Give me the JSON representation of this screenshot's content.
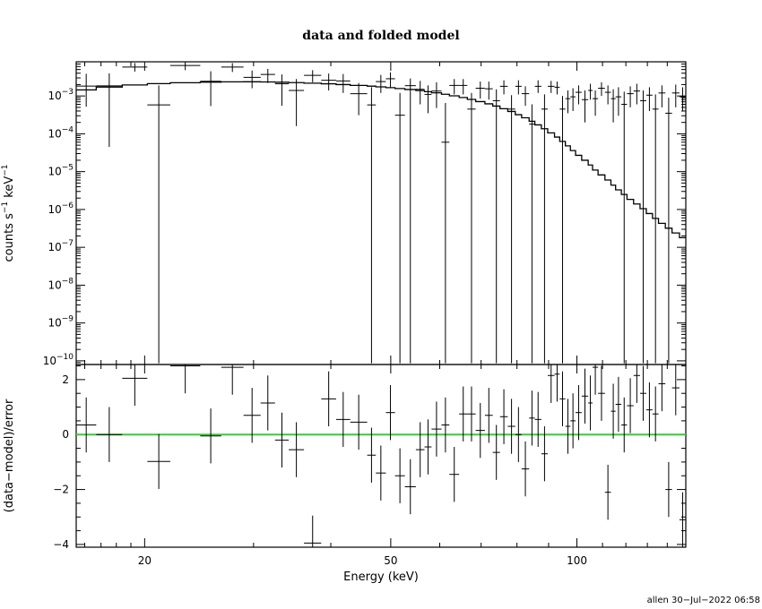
{
  "chart_data": [
    {
      "type": "scatter",
      "title": "data and folded model",
      "xlabel": "",
      "ylabel": "counts s",
      "ylabel_sup1": "−1",
      "ylabel_unit": " keV",
      "ylabel_sup2": "−1",
      "xscale": "log",
      "yscale": "log",
      "xlim": [
        15.5,
        150
      ],
      "ylim": [
        8e-11,
        0.008
      ],
      "y_ticks": [
        {
          "v": 0.001,
          "base": "10",
          "exp": "−3"
        },
        {
          "v": 0.0001,
          "base": "10",
          "exp": "−4"
        },
        {
          "v": 1e-05,
          "base": "10",
          "exp": "−5"
        },
        {
          "v": 1e-06,
          "base": "10",
          "exp": "−6"
        },
        {
          "v": 1e-07,
          "base": "10",
          "exp": "−7"
        },
        {
          "v": 1e-08,
          "base": "10",
          "exp": "−8"
        },
        {
          "v": 1e-09,
          "base": "10",
          "exp": "−9"
        },
        {
          "v": 1e-10,
          "base": "10",
          "exp": "−10"
        }
      ],
      "series": [
        {
          "kind": "data-with-errors",
          "color": "#000000",
          "points": [
            [
              15.5,
              16.7,
              0.00182,
              0.00052,
              0.00385
            ],
            [
              16.7,
              18.4,
              0.00185,
              4.5e-05,
              0.00395
            ],
            [
              18.4,
              20.2,
              0.0058,
              0.0044,
              0.0074
            ],
            [
              20.2,
              22.0,
              0.00058,
              8.6e-11,
              0.0019
            ],
            [
              22.0,
              24.6,
              0.0064,
              0.0048,
              0.0081
            ],
            [
              24.6,
              26.6,
              0.00245,
              0.00054,
              0.0045
            ],
            [
              26.6,
              28.9,
              0.0058,
              0.0043,
              0.0074
            ],
            [
              28.9,
              30.8,
              0.0031,
              0.0016,
              0.0047
            ],
            [
              30.8,
              32.5,
              0.0037,
              0.0022,
              0.0052
            ],
            [
              32.5,
              34.2,
              0.0021,
              0.00055,
              0.0037
            ],
            [
              34.2,
              36.2,
              0.0014,
              0.00016,
              0.0028
            ],
            [
              36.2,
              38.6,
              0.0035,
              0.0023,
              0.0048
            ],
            [
              38.6,
              40.8,
              0.0026,
              0.0014,
              0.0039
            ],
            [
              40.8,
              43.0,
              0.0025,
              0.0012,
              0.0038
            ],
            [
              43.0,
              45.8,
              0.00115,
              0.00031,
              0.0022
            ],
            [
              45.8,
              47.3,
              0.00058,
              8.6e-11,
              0.0017
            ],
            [
              47.3,
              49.1,
              0.0024,
              0.0012,
              0.0036
            ],
            [
              49.1,
              50.8,
              0.00285,
              0.0017,
              0.0042
            ],
            [
              50.8,
              52.7,
              0.00031,
              8.6e-11,
              0.0012
            ],
            [
              52.7,
              54.9,
              0.00187,
              8.6e-11,
              0.0029
            ],
            [
              54.9,
              56.7,
              0.0015,
              0.0006,
              0.0025
            ],
            [
              56.7,
              58.2,
              0.0011,
              0.00035,
              0.0019
            ],
            [
              58.2,
              60.4,
              0.00135,
              0.00048,
              0.0023
            ],
            [
              60.4,
              62.2,
              6e-05,
              8.6e-11,
              0.00065
            ],
            [
              62.2,
              64.5,
              0.0019,
              0.0011,
              0.0028
            ],
            [
              64.5,
              66.5,
              0.0019,
              0.0011,
              0.0028
            ],
            [
              66.5,
              68.6,
              0.00045,
              8.6e-11,
              0.0012
            ],
            [
              68.6,
              71.0,
              0.0016,
              0.00085,
              0.0024
            ],
            [
              71.0,
              73.1,
              0.00155,
              0.0008,
              0.0024
            ],
            [
              73.1,
              75.1,
              0.00075,
              8.6e-11,
              0.0015
            ],
            [
              75.1,
              77.3,
              0.0018,
              0.0011,
              0.0026
            ],
            [
              77.3,
              79.5,
              0.00045,
              8.6e-11,
              0.00105
            ],
            [
              79.5,
              81.4,
              0.0018,
              0.0011,
              0.0026
            ],
            [
              81.4,
              83.7,
              0.00115,
              0.00055,
              0.0018
            ],
            [
              83.7,
              85.5,
              0.00018,
              8.6e-11,
              0.0006
            ],
            [
              85.5,
              87.6,
              0.0018,
              0.0012,
              0.0026
            ],
            [
              87.6,
              89.7,
              0.00045,
              8.6e-11,
              0.0011
            ],
            [
              89.7,
              92.0,
              0.0018,
              0.0012,
              0.0025
            ],
            [
              92.0,
              93.8,
              0.0017,
              0.0011,
              0.0024
            ],
            [
              93.8,
              95.8,
              0.00045,
              8.6e-11,
              0.001
            ],
            [
              95.8,
              97.6,
              0.00085,
              0.00035,
              0.0014
            ],
            [
              97.6,
              99.5,
              0.00095,
              0.0004,
              0.0016
            ],
            [
              99.5,
              101.8,
              0.00125,
              0.0006,
              0.0019
            ],
            [
              101.8,
              104.3,
              0.0008,
              0.0002,
              0.0014
            ],
            [
              104.3,
              106.0,
              0.0014,
              0.0008,
              0.0021
            ],
            [
              106.0,
              108.2,
              0.00085,
              0.0003,
              0.0014
            ],
            [
              108.2,
              111.0,
              0.0016,
              0.001,
              0.0023
            ],
            [
              111.0,
              113.5,
              0.00125,
              0.0006,
              0.0019
            ],
            [
              113.5,
              115.5,
              0.00085,
              0.0002,
              0.0015
            ],
            [
              115.5,
              118.0,
              0.00095,
              0.0003,
              0.0017
            ],
            [
              118.0,
              120.5,
              0.0006,
              8.6e-11,
              0.0013
            ],
            [
              120.5,
              123.5,
              0.00115,
              0.0005,
              0.0018
            ],
            [
              123.5,
              126.5,
              0.00135,
              0.0006,
              0.0021
            ],
            [
              126.5,
              129.5,
              0.00075,
              8.6e-11,
              0.0014
            ],
            [
              129.5,
              132.5,
              0.00105,
              0.0004,
              0.0017
            ],
            [
              132.5,
              135.5,
              0.00045,
              8.6e-11,
              0.0011
            ],
            [
              135.5,
              139.0,
              0.0012,
              0.0005,
              0.0019
            ],
            [
              139.0,
              142.5,
              0.00035,
              8.6e-11,
              0.0009
            ],
            [
              142.5,
              146.5,
              0.0012,
              0.0005,
              0.002
            ],
            [
              146.5,
              150.0,
              0.00095,
              0.0004,
              0.0017
            ]
          ]
        },
        {
          "kind": "model-step",
          "color": "#000000",
          "edges": [
            15.5,
            16.7,
            18.4,
            20.2,
            22.0,
            24.6,
            26.6,
            28.9,
            30.8,
            32.5,
            34.2,
            36.2,
            38.6,
            40.8,
            43.0,
            45.8,
            47.3,
            49.1,
            50.8,
            52.7,
            54.9,
            56.7,
            58.2,
            60.4,
            62.2,
            64.5,
            66.5,
            68.6,
            71.0,
            73.1,
            75.1,
            77.3,
            79.5,
            81.4,
            83.7,
            85.5,
            87.6,
            89.7,
            92.0,
            93.8,
            95.8,
            97.6,
            99.5,
            101.8,
            104.3,
            106.0,
            108.2,
            111.0,
            113.5,
            115.5,
            118.0,
            120.5,
            123.5,
            126.5,
            129.5,
            132.5,
            135.5,
            139.0,
            142.5,
            146.5,
            150.0
          ],
          "values": [
            0.00145,
            0.00172,
            0.00195,
            0.00212,
            0.00224,
            0.00232,
            0.00236,
            0.00237,
            0.00235,
            0.00231,
            0.00225,
            0.00218,
            0.0021,
            0.002,
            0.0019,
            0.00182,
            0.00174,
            0.00166,
            0.00157,
            0.00148,
            0.00139,
            0.0013,
            0.00121,
            0.00111,
            0.00101,
            0.00091,
            0.00081,
            0.00071,
            0.00062,
            0.00054,
            0.00046,
            0.00039,
            0.00032,
            0.000265,
            0.000215,
            0.000172,
            0.000136,
            0.000106,
            8.2e-05,
            6.3e-05,
            4.8e-05,
            3.6e-05,
            2.7e-05,
            2e-05,
            1.5e-05,
            1.1e-05,
            8.2e-06,
            6e-06,
            4.4e-06,
            3.3e-06,
            2.5e-06,
            1.85e-06,
            1.4e-06,
            1.05e-06,
            7.8e-07,
            5.8e-07,
            4.3e-07,
            3.2e-07,
            2.4e-07,
            1.8e-07
          ]
        }
      ]
    },
    {
      "type": "scatter",
      "xlabel": "Energy (keV)",
      "ylabel": "(data−model)/error",
      "xscale": "log",
      "xlim": [
        15.5,
        150
      ],
      "ylim": [
        -4.1,
        2.55
      ],
      "x_ticks": [
        {
          "v": 20,
          "label": "20"
        },
        {
          "v": 50,
          "label": "50"
        },
        {
          "v": 100,
          "label": "100"
        }
      ],
      "y_ticks": [
        {
          "v": 2,
          "label": "2"
        },
        {
          "v": 0,
          "label": "0"
        },
        {
          "v": -2,
          "label": "−2"
        },
        {
          "v": -4,
          "label": "−4"
        }
      ],
      "series": [
        {
          "kind": "zero-line",
          "color": "#33cc33",
          "value": 0
        },
        {
          "kind": "residuals",
          "color": "#000000",
          "points": [
            [
              15.5,
              16.7,
              0.35,
              1.0
            ],
            [
              16.7,
              18.4,
              0.0,
              1.0
            ],
            [
              18.4,
              20.2,
              2.05,
              1.0
            ],
            [
              20.2,
              22.0,
              -0.98,
              1.0
            ],
            [
              22.0,
              24.6,
              2.5,
              1.0
            ],
            [
              24.6,
              26.6,
              -0.05,
              1.0
            ],
            [
              26.6,
              28.9,
              2.45,
              1.0
            ],
            [
              28.9,
              30.8,
              0.7,
              1.0
            ],
            [
              30.8,
              32.5,
              1.15,
              1.0
            ],
            [
              32.5,
              34.2,
              -0.2,
              1.0
            ],
            [
              34.2,
              36.2,
              -0.55,
              1.0
            ],
            [
              36.2,
              38.6,
              -3.95,
              1.0
            ],
            [
              38.6,
              40.8,
              1.3,
              1.0
            ],
            [
              40.8,
              43.0,
              0.55,
              1.0
            ],
            [
              43.0,
              45.8,
              0.45,
              1.0
            ],
            [
              45.8,
              47.3,
              -0.75,
              1.0
            ],
            [
              47.3,
              49.1,
              -1.4,
              1.0
            ],
            [
              49.1,
              50.8,
              0.8,
              1.0
            ],
            [
              50.8,
              52.7,
              -1.5,
              1.0
            ],
            [
              52.7,
              54.9,
              -1.9,
              1.0
            ],
            [
              54.9,
              56.7,
              -0.55,
              1.0
            ],
            [
              56.7,
              58.2,
              -0.45,
              1.0
            ],
            [
              58.2,
              60.4,
              0.2,
              1.0
            ],
            [
              60.4,
              62.2,
              0.35,
              1.0
            ],
            [
              62.2,
              64.5,
              -1.45,
              1.0
            ],
            [
              64.5,
              66.5,
              0.75,
              1.0
            ],
            [
              66.5,
              68.6,
              0.75,
              1.0
            ],
            [
              68.6,
              71.0,
              0.15,
              1.0
            ],
            [
              71.0,
              73.1,
              0.7,
              1.0
            ],
            [
              73.1,
              75.1,
              -0.65,
              1.0
            ],
            [
              75.1,
              77.3,
              0.65,
              1.0
            ],
            [
              77.3,
              79.5,
              0.3,
              1.0
            ],
            [
              79.5,
              81.4,
              0.0,
              1.0
            ],
            [
              81.4,
              83.7,
              -1.25,
              1.0
            ],
            [
              83.7,
              85.5,
              0.6,
              1.0
            ],
            [
              85.5,
              87.6,
              0.55,
              1.0
            ],
            [
              87.6,
              89.7,
              -0.7,
              1.0
            ],
            [
              89.7,
              92.0,
              2.15,
              1.0
            ],
            [
              92.0,
              93.8,
              2.2,
              1.0
            ],
            [
              93.8,
              95.8,
              1.3,
              1.0
            ],
            [
              95.8,
              97.6,
              0.3,
              1.0
            ],
            [
              97.6,
              99.5,
              0.5,
              1.0
            ],
            [
              99.5,
              101.8,
              0.8,
              1.0
            ],
            [
              101.8,
              104.3,
              1.4,
              1.0
            ],
            [
              104.3,
              106.0,
              1.15,
              1.0
            ],
            [
              106.0,
              108.2,
              2.45,
              1.0
            ],
            [
              108.2,
              111.0,
              1.5,
              1.0
            ],
            [
              111.0,
              113.5,
              -2.1,
              1.0
            ],
            [
              113.5,
              115.5,
              0.85,
              1.0
            ],
            [
              115.5,
              118.0,
              1.1,
              1.0
            ],
            [
              118.0,
              120.5,
              0.35,
              1.0
            ],
            [
              120.5,
              123.5,
              1.05,
              1.0
            ],
            [
              123.5,
              126.5,
              2.15,
              1.0
            ],
            [
              126.5,
              129.5,
              1.5,
              1.0
            ],
            [
              129.5,
              132.5,
              0.9,
              1.0
            ],
            [
              132.5,
              135.5,
              0.75,
              1.0
            ],
            [
              135.5,
              139.0,
              1.85,
              1.0
            ],
            [
              139.0,
              142.5,
              -2.0,
              1.0
            ],
            [
              142.5,
              146.5,
              1.7,
              1.0
            ],
            [
              146.5,
              150.0,
              -3.1,
              1.0
            ]
          ]
        }
      ]
    }
  ],
  "footer": "allen 30−Jul−2022 06:58"
}
